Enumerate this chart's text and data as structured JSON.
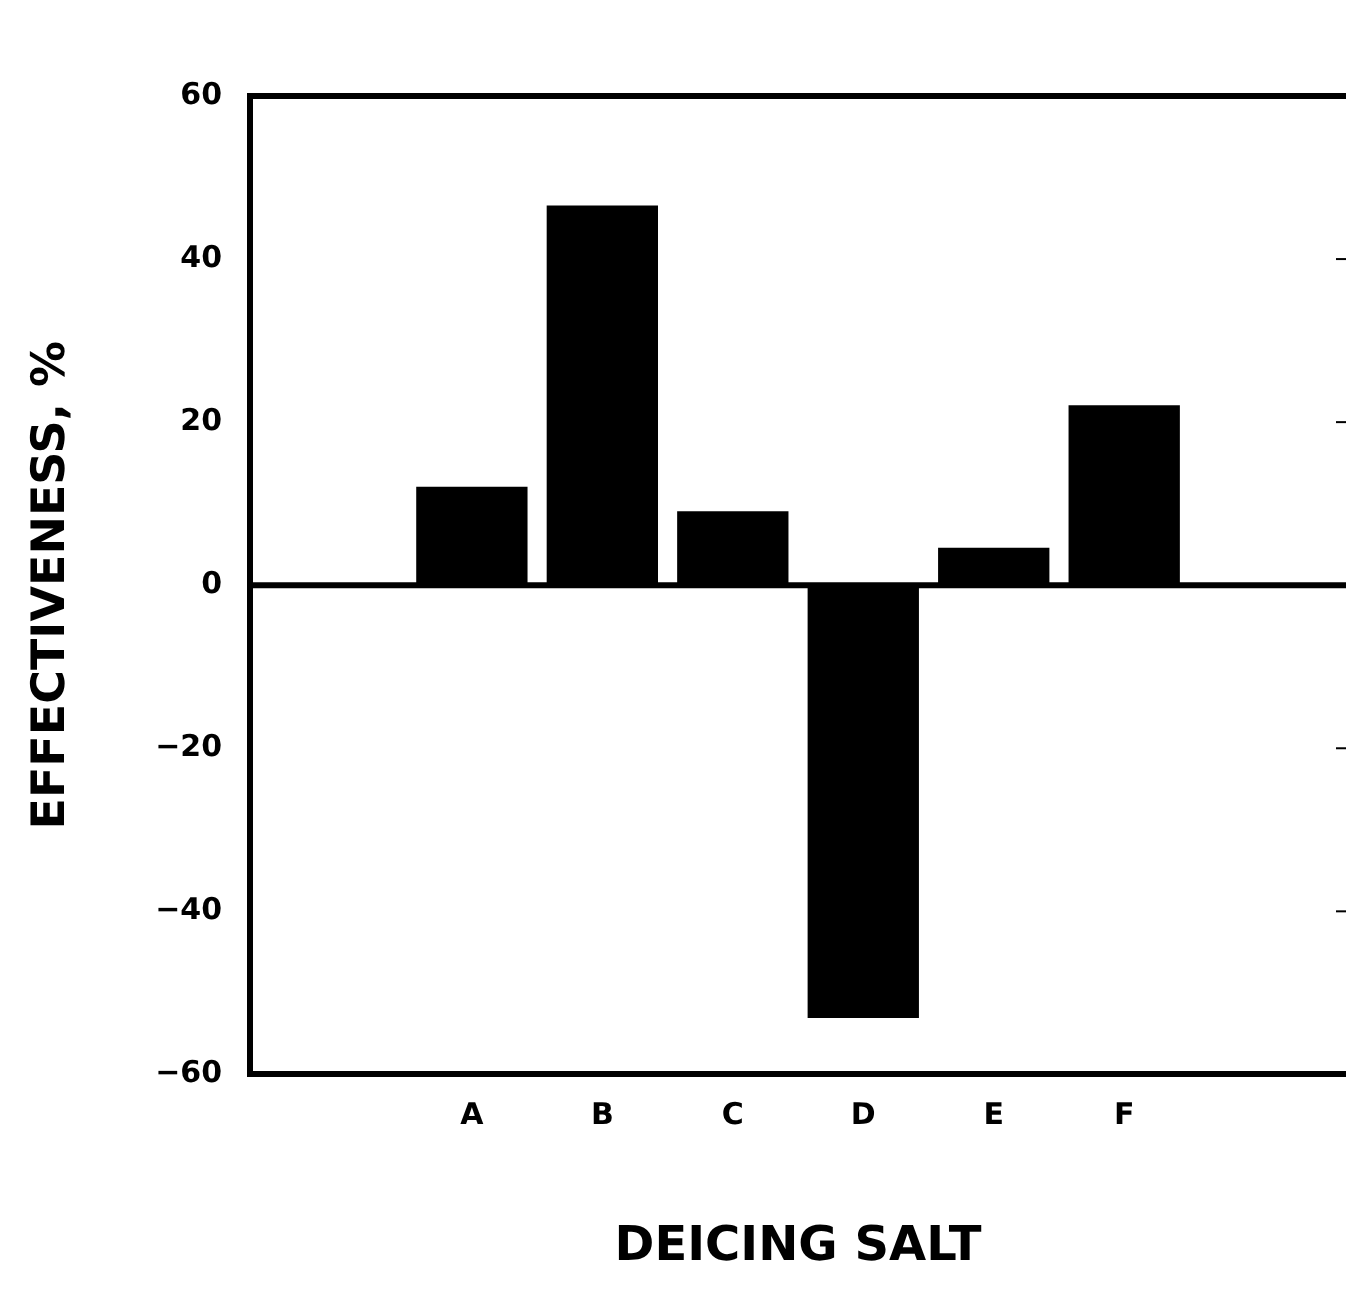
{
  "chart_data": {
    "type": "bar",
    "xlabel": "DEICING SALT",
    "ylabel": "EFFECTIVENESS, %",
    "categories": [
      "A",
      "B",
      "C",
      "D",
      "E",
      "F"
    ],
    "values": [
      12,
      46.5,
      9,
      -53,
      4.5,
      22
    ],
    "color": "#000000",
    "ylim": [
      -60,
      60
    ],
    "yticks": [
      -60,
      -40,
      -20,
      0,
      20,
      40,
      60
    ],
    "legend": false
  }
}
